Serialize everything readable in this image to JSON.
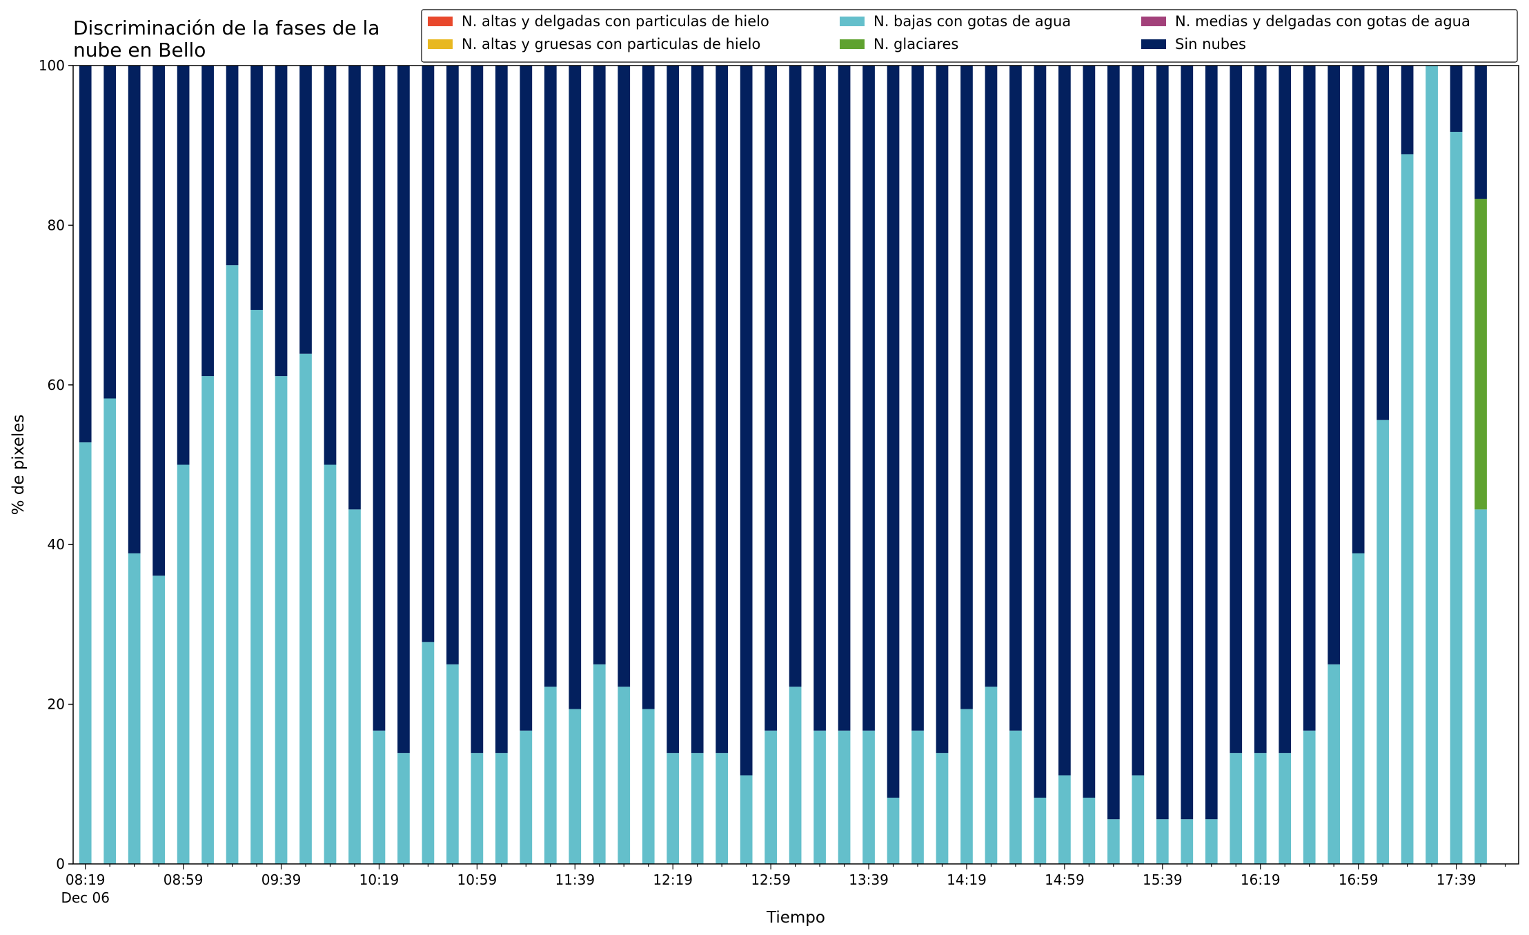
{
  "chart_data": {
    "type": "bar",
    "stacked": true,
    "title_lines": [
      "Discriminación de la fases de la",
      "nube en Bello"
    ],
    "xlabel": "Tiempo",
    "ylabel": "% de pixeles",
    "ylim": [
      0,
      100
    ],
    "yticks": [
      0,
      20,
      40,
      60,
      80,
      100
    ],
    "x_tick_labels": [
      "08:19",
      "08:59",
      "09:39",
      "10:19",
      "10:59",
      "11:39",
      "12:19",
      "12:59",
      "13:39",
      "14:19",
      "14:59",
      "15:39",
      "16:19",
      "16:59",
      "17:39"
    ],
    "x_date_label": "Dec 06",
    "grid": false,
    "legend_position": "top-right",
    "legend_columns": 3,
    "categories": [
      "08:19",
      "08:29",
      "08:39",
      "08:49",
      "08:59",
      "09:09",
      "09:19",
      "09:29",
      "09:39",
      "09:49",
      "09:59",
      "10:09",
      "10:19",
      "10:29",
      "10:39",
      "10:49",
      "10:59",
      "11:09",
      "11:19",
      "11:29",
      "11:39",
      "11:49",
      "11:59",
      "12:09",
      "12:19",
      "12:29",
      "12:39",
      "12:49",
      "12:59",
      "13:09",
      "13:19",
      "13:29",
      "13:39",
      "13:49",
      "13:59",
      "14:09",
      "14:19",
      "14:29",
      "14:39",
      "14:49",
      "14:59",
      "15:09",
      "15:19",
      "15:29",
      "15:39",
      "15:49",
      "15:59",
      "16:09",
      "16:19",
      "16:29",
      "16:39",
      "16:49",
      "16:59",
      "17:09",
      "17:19",
      "17:29",
      "17:39",
      "17:49"
    ],
    "series": [
      {
        "name": "N. altas y delgadas con particulas de hielo",
        "color": "#e8482c",
        "values": [
          0,
          0,
          0,
          0,
          0,
          0,
          0,
          0,
          0,
          0,
          0,
          0,
          0,
          0,
          0,
          0,
          0,
          0,
          0,
          0,
          0,
          0,
          0,
          0,
          0,
          0,
          0,
          0,
          0,
          0,
          0,
          0,
          0,
          0,
          0,
          0,
          0,
          0,
          0,
          0,
          0,
          0,
          0,
          0,
          0,
          0,
          0,
          0,
          0,
          0,
          0,
          0,
          0,
          0,
          0,
          0,
          0,
          0
        ]
      },
      {
        "name": "N. altas y gruesas con particulas de hielo",
        "color": "#e8b820",
        "values": [
          0,
          0,
          0,
          0,
          0,
          0,
          0,
          0,
          0,
          0,
          0,
          0,
          0,
          0,
          0,
          0,
          0,
          0,
          0,
          0,
          0,
          0,
          0,
          0,
          0,
          0,
          0,
          0,
          0,
          0,
          0,
          0,
          0,
          0,
          0,
          0,
          0,
          0,
          0,
          0,
          0,
          0,
          0,
          0,
          0,
          0,
          0,
          0,
          0,
          0,
          0,
          0,
          0,
          0,
          0,
          0,
          0,
          0
        ]
      },
      {
        "name": "N. bajas con gotas de agua",
        "color": "#64bfcb",
        "values": [
          52.8,
          58.3,
          38.9,
          36.1,
          50.0,
          61.1,
          75.0,
          69.4,
          61.1,
          63.9,
          50.0,
          44.4,
          16.7,
          13.9,
          27.8,
          25.0,
          13.9,
          13.9,
          16.7,
          22.2,
          19.4,
          25.0,
          22.2,
          19.4,
          13.9,
          13.9,
          13.9,
          11.1,
          16.7,
          22.2,
          16.7,
          16.7,
          16.7,
          8.3,
          16.7,
          13.9,
          19.4,
          22.2,
          16.7,
          8.3,
          11.1,
          8.3,
          5.6,
          11.1,
          5.6,
          5.6,
          5.6,
          13.9,
          13.9,
          13.9,
          16.7,
          25.0,
          38.9,
          55.6,
          88.9,
          100.0,
          91.7,
          44.4
        ]
      },
      {
        "name": "N. glaciares",
        "color": "#5fa22f",
        "values": [
          0,
          0,
          0,
          0,
          0,
          0,
          0,
          0,
          0,
          0,
          0,
          0,
          0,
          0,
          0,
          0,
          0,
          0,
          0,
          0,
          0,
          0,
          0,
          0,
          0,
          0,
          0,
          0,
          0,
          0,
          0,
          0,
          0,
          0,
          0,
          0,
          0,
          0,
          0,
          0,
          0,
          0,
          0,
          0,
          0,
          0,
          0,
          0,
          0,
          0,
          0,
          0,
          0,
          0,
          0,
          0,
          0,
          38.9
        ]
      },
      {
        "name": "N. medias y delgadas con gotas de agua",
        "color": "#a2417a",
        "values": [
          0,
          0,
          0,
          0,
          0,
          0,
          0,
          0,
          0,
          0,
          0,
          0,
          0,
          0,
          0,
          0,
          0,
          0,
          0,
          0,
          0,
          0,
          0,
          0,
          0,
          0,
          0,
          0,
          0,
          0,
          0,
          0,
          0,
          0,
          0,
          0,
          0,
          0,
          0,
          0,
          0,
          0,
          0,
          0,
          0,
          0,
          0,
          0,
          0,
          0,
          0,
          0,
          0,
          0,
          0,
          0,
          0,
          0
        ]
      },
      {
        "name": "Sin nubes",
        "color": "#03205e",
        "values": [
          47.2,
          41.7,
          61.1,
          63.9,
          50.0,
          38.9,
          25.0,
          30.6,
          38.9,
          36.1,
          50.0,
          55.6,
          83.3,
          86.1,
          72.2,
          75.0,
          86.1,
          86.1,
          83.3,
          77.8,
          80.6,
          75.0,
          77.8,
          80.6,
          86.1,
          86.1,
          86.1,
          88.9,
          83.3,
          77.8,
          83.3,
          83.3,
          83.3,
          91.7,
          83.3,
          86.1,
          80.6,
          77.8,
          83.3,
          91.7,
          88.9,
          91.7,
          94.4,
          88.9,
          94.4,
          94.4,
          94.4,
          86.1,
          86.1,
          86.1,
          83.3,
          75.0,
          61.1,
          44.4,
          11.1,
          0,
          8.3,
          16.7
        ]
      }
    ],
    "legend_order": [
      0,
      1,
      2,
      3,
      4,
      5
    ]
  }
}
